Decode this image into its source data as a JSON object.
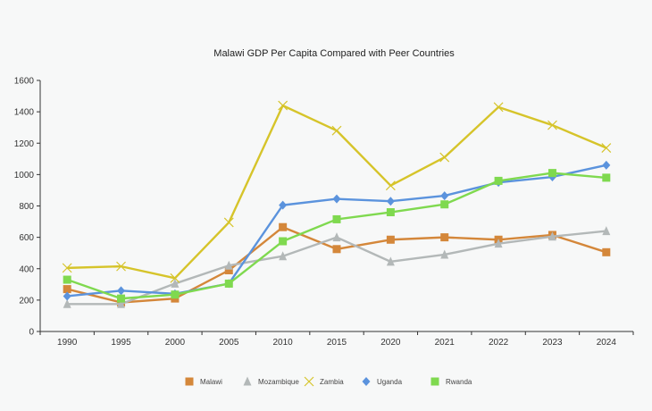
{
  "chart_data": {
    "type": "line",
    "title": "Malawi GDP Per Capita Compared with Peer Countries",
    "xlabel": "",
    "ylabel": "",
    "categories": [
      "1990",
      "1995",
      "2000",
      "2005",
      "2010",
      "2015",
      "2020",
      "2021",
      "2022",
      "2023",
      "2024"
    ],
    "ylim": [
      0,
      1600
    ],
    "yticks": [
      0,
      200,
      400,
      600,
      800,
      1000,
      1200,
      1400,
      1600
    ],
    "grid": false,
    "legend_position": "bottom",
    "series": [
      {
        "name": "Malawi",
        "color": "#d4873a",
        "marker": "square",
        "values": [
          270,
          185,
          210,
          390,
          665,
          525,
          585,
          600,
          585,
          615,
          505
        ]
      },
      {
        "name": "Mozambique",
        "color": "#b3b8b8",
        "marker": "triangle",
        "values": [
          175,
          175,
          305,
          420,
          480,
          600,
          445,
          490,
          560,
          605,
          640
        ]
      },
      {
        "name": "Zambia",
        "color": "#d6c42a",
        "marker": "x",
        "values": [
          405,
          415,
          340,
          695,
          1440,
          1280,
          930,
          1110,
          1430,
          1315,
          1170
        ]
      },
      {
        "name": "Uganda",
        "color": "#5b93dd",
        "marker": "diamond",
        "values": [
          225,
          260,
          240,
          305,
          805,
          845,
          830,
          865,
          950,
          985,
          1060
        ]
      },
      {
        "name": "Rwanda",
        "color": "#7fd94f",
        "marker": "square",
        "values": [
          330,
          210,
          235,
          305,
          575,
          715,
          760,
          810,
          960,
          1010,
          980
        ]
      }
    ]
  }
}
